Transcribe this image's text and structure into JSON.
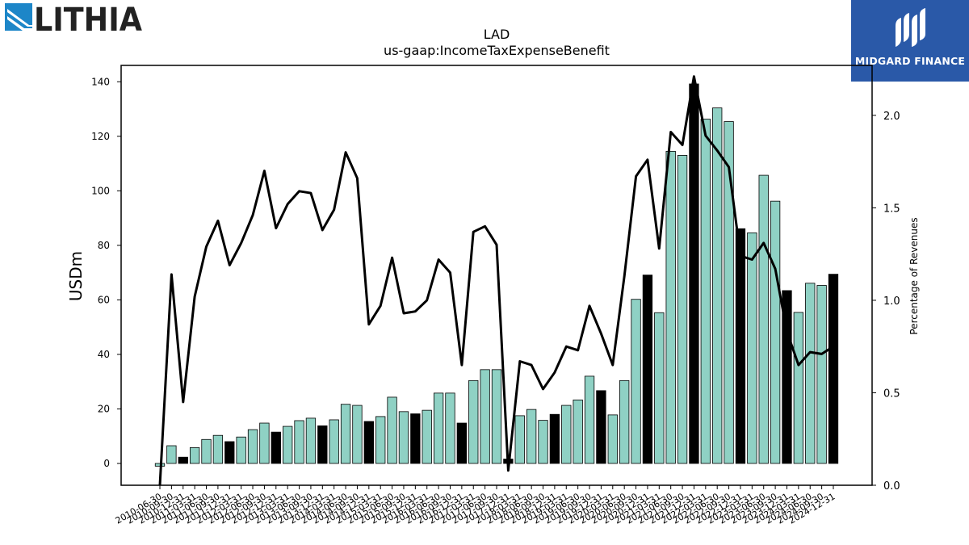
{
  "branding": {
    "left_logo_text": "LITHIA",
    "right_logo_text": "MIDGARD FINANCE"
  },
  "chart_data": {
    "type": "bar",
    "title": "LAD",
    "subtitle": "us-gaap:IncomeTaxExpenseBenefit",
    "ylabel": "USDm",
    "y2label": "Percentage of Revenues",
    "ylim": [
      -8,
      146
    ],
    "y2lim": [
      0.0,
      2.27
    ],
    "yticks": [
      "0",
      "20",
      "40",
      "60",
      "80",
      "100",
      "120",
      "140"
    ],
    "y2ticks": [
      "0.0",
      "0.5",
      "1.0",
      "1.5",
      "2.0"
    ],
    "categories": [
      "2010-06-30",
      "2010-09-30",
      "2010-12-31",
      "2011-03-31",
      "2011-06-30",
      "2011-09-30",
      "2011-12-31",
      "2012-03-31",
      "2012-06-30",
      "2012-09-30",
      "2012-12-31",
      "2013-03-31",
      "2013-06-30",
      "2013-09-30",
      "2013-12-31",
      "2014-03-31",
      "2014-06-30",
      "2014-09-30",
      "2014-12-31",
      "2015-03-31",
      "2015-06-30",
      "2015-09-30",
      "2015-12-31",
      "2016-03-31",
      "2016-06-30",
      "2016-09-30",
      "2016-12-31",
      "2017-03-31",
      "2017-06-30",
      "2017-09-30",
      "2017-12-31",
      "2018-03-31",
      "2018-06-30",
      "2018-09-30",
      "2018-12-31",
      "2019-03-31",
      "2019-06-30",
      "2019-09-30",
      "2019-12-31",
      "2020-03-31",
      "2020-06-30",
      "2020-09-30",
      "2020-12-31",
      "2021-03-31",
      "2021-06-30",
      "2021-09-30",
      "2021-12-31",
      "2022-03-31",
      "2022-06-30",
      "2022-09-30",
      "2022-12-31",
      "2023-03-31",
      "2023-06-30",
      "2023-09-30",
      "2023-12-31",
      "2024-03-31",
      "2024-06-30",
      "2024-09-30",
      "2024-12-31"
    ],
    "x_tick_labels_shown": [
      "2010-06-30",
      "2010-09-30",
      "2010-12-31",
      "2011-03-31",
      "2011-06-30",
      "2011-09-30",
      "2011-12-31",
      "2012-03-31",
      "2012-06-30",
      "2012-09-30",
      "2012-12-31",
      "2013-03-31",
      "2013-06-30",
      "2013-09-30",
      "2013-12-31",
      "2014-03-31",
      "2014-06-30",
      "2014-09-30",
      "2014-12-31",
      "2015-03-31",
      "2015-06-30",
      "2015-09-30",
      "2015-12-31",
      "2016-03-31",
      "2016-06-30",
      "2016-09-30",
      "2016-12-31",
      "2017-03-31",
      "2017-06-30",
      "2017-09-30",
      "2017-12-31",
      "2018-03-31",
      "2018-06-30",
      "2018-09-30",
      "2018-12-31",
      "2019-03-31",
      "2019-06-30",
      "2019-09-30",
      "2019-12-31",
      "2020-03-31",
      "2020-06-30",
      "2020-09-30",
      "2020-12-31",
      "2021-03-31",
      "2021-06-30",
      "2021-09-30",
      "2021-12-31",
      "2022-03-31",
      "2022-06-30",
      "2022-09-30",
      "2022-12-31",
      "2023-03-31",
      "2023-06-30",
      "2023-09-30",
      "2023-12-31",
      "2024-03-31",
      "2024-06-30",
      "2024-09-30",
      "2024-12-31"
    ],
    "series": [
      {
        "axis": "left",
        "type": "bar",
        "values": [
          -1,
          6.5,
          2.3,
          5.8,
          8.8,
          10.3,
          8,
          9.7,
          12.4,
          14.8,
          11.5,
          13.6,
          15.7,
          16.6,
          13.8,
          16,
          21.7,
          21.3,
          15.4,
          17.2,
          24.3,
          19,
          18.2,
          19.5,
          25.8,
          25.8,
          14.8,
          30.4,
          34.4,
          34.4,
          1.6,
          17.5,
          19.8,
          15.8,
          18,
          21.3,
          23.3,
          32,
          26.7,
          17.8,
          30.4,
          60.2,
          69.1,
          55.3,
          114.5,
          113,
          139.2,
          126.3,
          130.4,
          125.4,
          86.1,
          84.6,
          105.7,
          96.2,
          63.4,
          55.4,
          66.1,
          65.3,
          69.4
        ],
        "colors": [
          "teal",
          "teal",
          "black",
          "teal",
          "teal",
          "teal",
          "black",
          "teal",
          "teal",
          "teal",
          "black",
          "teal",
          "teal",
          "teal",
          "black",
          "teal",
          "teal",
          "teal",
          "black",
          "teal",
          "teal",
          "teal",
          "black",
          "teal",
          "teal",
          "teal",
          "black",
          "teal",
          "teal",
          "teal",
          "black",
          "teal",
          "teal",
          "teal",
          "black",
          "teal",
          "teal",
          "teal",
          "black",
          "teal",
          "teal",
          "teal",
          "black",
          "teal",
          "teal",
          "teal",
          "black",
          "teal",
          "teal",
          "teal",
          "black",
          "teal",
          "teal",
          "teal",
          "black",
          "teal",
          "teal",
          "teal",
          "black"
        ]
      },
      {
        "axis": "right",
        "type": "line",
        "values": [
          0.0,
          1.14,
          0.45,
          1.02,
          1.29,
          1.43,
          1.19,
          1.31,
          1.46,
          1.7,
          1.39,
          1.52,
          1.59,
          1.58,
          1.38,
          1.49,
          1.8,
          1.66,
          0.87,
          0.97,
          1.23,
          0.93,
          0.94,
          1.0,
          1.22,
          1.15,
          0.65,
          1.37,
          1.4,
          1.3,
          0.08,
          0.67,
          0.65,
          0.52,
          0.61,
          0.75,
          0.73,
          0.97,
          0.82,
          0.65,
          1.13,
          1.67,
          1.76,
          1.28,
          1.91,
          1.84,
          2.21,
          1.89,
          1.81,
          1.72,
          1.24,
          1.22,
          1.31,
          1.17,
          0.83,
          0.65,
          0.72,
          0.71,
          0.75
        ]
      }
    ],
    "colors": {
      "teal": "#8fd1c4",
      "black": "#000000",
      "line": "#000000"
    },
    "grid": false,
    "legend": "none"
  }
}
